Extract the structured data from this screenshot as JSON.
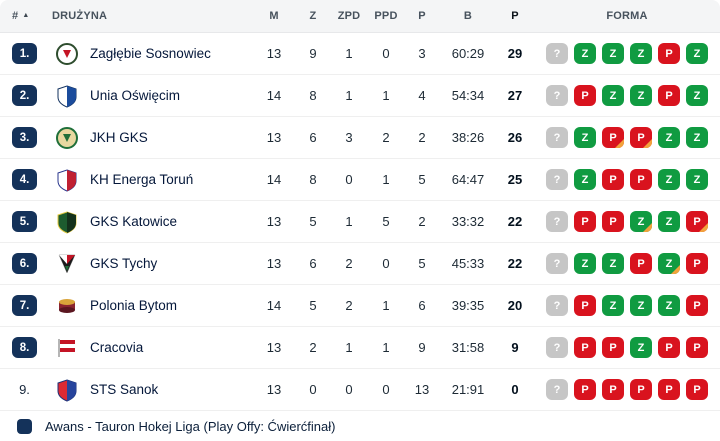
{
  "table": {
    "columns": {
      "rank": "#",
      "team": "DRUŻYNA",
      "m": "M",
      "z": "Z",
      "zpd": "ZPD",
      "ppd": "PPD",
      "p": "P",
      "b": "B",
      "pts": "P",
      "forma": "FORMA"
    },
    "sort": {
      "column": "rank",
      "direction": "asc",
      "icon": "sort-asc-triangle"
    },
    "rows": [
      {
        "rank": "1.",
        "rank_badge": true,
        "team": "Zagłębie Sosnowiec",
        "m": 13,
        "z": 9,
        "zpd": 1,
        "ppd": 0,
        "p": 3,
        "b": "60:29",
        "pts": 29,
        "logo": {
          "shape": "circle",
          "colors": [
            "#ffffff",
            "#2e4d2e",
            "#c41425"
          ]
        },
        "forma": [
          {
            "t": "?",
            "c": "unknown"
          },
          {
            "t": "Z",
            "c": "win"
          },
          {
            "t": "Z",
            "c": "win"
          },
          {
            "t": "Z",
            "c": "win"
          },
          {
            "t": "P",
            "c": "loss"
          },
          {
            "t": "Z",
            "c": "win"
          }
        ]
      },
      {
        "rank": "2.",
        "rank_badge": true,
        "team": "Unia Oświęcim",
        "m": 14,
        "z": 8,
        "zpd": 1,
        "ppd": 1,
        "p": 4,
        "b": "54:34",
        "pts": 27,
        "logo": {
          "shape": "shield",
          "colors": [
            "#ffffff",
            "#1b4c9c",
            "#12315e"
          ]
        },
        "forma": [
          {
            "t": "?",
            "c": "unknown"
          },
          {
            "t": "P",
            "c": "loss"
          },
          {
            "t": "Z",
            "c": "win"
          },
          {
            "t": "Z",
            "c": "win"
          },
          {
            "t": "P",
            "c": "loss"
          },
          {
            "t": "Z",
            "c": "win"
          }
        ]
      },
      {
        "rank": "3.",
        "rank_badge": true,
        "team": "JKH GKS",
        "m": 13,
        "z": 6,
        "zpd": 3,
        "ppd": 2,
        "p": 2,
        "b": "38:26",
        "pts": 26,
        "logo": {
          "shape": "circle",
          "colors": [
            "#e8d8a0",
            "#1f6f39",
            "#1f6f39"
          ]
        },
        "forma": [
          {
            "t": "?",
            "c": "unknown"
          },
          {
            "t": "Z",
            "c": "win"
          },
          {
            "t": "P",
            "c": "loss",
            "ot": true
          },
          {
            "t": "P",
            "c": "loss",
            "ot": true
          },
          {
            "t": "Z",
            "c": "win"
          },
          {
            "t": "Z",
            "c": "win"
          }
        ]
      },
      {
        "rank": "4.",
        "rank_badge": true,
        "team": "KH Energa Toruń",
        "m": 14,
        "z": 8,
        "zpd": 0,
        "ppd": 1,
        "p": 5,
        "b": "64:47",
        "pts": 25,
        "logo": {
          "shape": "shield",
          "colors": [
            "#ffffff",
            "#c02032",
            "#28358c"
          ]
        },
        "forma": [
          {
            "t": "?",
            "c": "unknown"
          },
          {
            "t": "Z",
            "c": "win"
          },
          {
            "t": "P",
            "c": "loss"
          },
          {
            "t": "P",
            "c": "loss"
          },
          {
            "t": "Z",
            "c": "win"
          },
          {
            "t": "Z",
            "c": "win"
          }
        ]
      },
      {
        "rank": "5.",
        "rank_badge": true,
        "team": "GKS Katowice",
        "m": 13,
        "z": 5,
        "zpd": 1,
        "ppd": 5,
        "p": 2,
        "b": "33:32",
        "pts": 22,
        "logo": {
          "shape": "shield",
          "colors": [
            "#1d5c2f",
            "#14321c",
            "#e3c93f"
          ]
        },
        "forma": [
          {
            "t": "?",
            "c": "unknown"
          },
          {
            "t": "P",
            "c": "loss"
          },
          {
            "t": "P",
            "c": "loss"
          },
          {
            "t": "Z",
            "c": "win",
            "ot": true
          },
          {
            "t": "Z",
            "c": "win"
          },
          {
            "t": "P",
            "c": "loss",
            "ot": true
          }
        ]
      },
      {
        "rank": "6.",
        "rank_badge": true,
        "team": "GKS Tychy",
        "m": 13,
        "z": 6,
        "zpd": 2,
        "ppd": 0,
        "p": 5,
        "b": "45:33",
        "pts": 22,
        "logo": {
          "shape": "pennant",
          "colors": [
            "#1a1a1a",
            "#1f6f39",
            "#c41425"
          ]
        },
        "forma": [
          {
            "t": "?",
            "c": "unknown"
          },
          {
            "t": "Z",
            "c": "win"
          },
          {
            "t": "Z",
            "c": "win"
          },
          {
            "t": "P",
            "c": "loss"
          },
          {
            "t": "Z",
            "c": "win",
            "ot": true
          },
          {
            "t": "P",
            "c": "loss"
          }
        ]
      },
      {
        "rank": "7.",
        "rank_badge": true,
        "team": "Polonia Bytom",
        "m": 14,
        "z": 5,
        "zpd": 2,
        "ppd": 1,
        "p": 6,
        "b": "39:35",
        "pts": 20,
        "logo": {
          "shape": "puck",
          "colors": [
            "#8a2430",
            "#d9a43a",
            "#5b1620"
          ]
        },
        "forma": [
          {
            "t": "?",
            "c": "unknown"
          },
          {
            "t": "P",
            "c": "loss"
          },
          {
            "t": "Z",
            "c": "win"
          },
          {
            "t": "Z",
            "c": "win"
          },
          {
            "t": "Z",
            "c": "win"
          },
          {
            "t": "P",
            "c": "loss"
          }
        ]
      },
      {
        "rank": "8.",
        "rank_badge": true,
        "team": "Cracovia",
        "m": 13,
        "z": 2,
        "zpd": 1,
        "ppd": 1,
        "p": 9,
        "b": "31:58",
        "pts": 9,
        "logo": {
          "shape": "flag",
          "colors": [
            "#ffffff",
            "#c41425",
            "#b5b5b5"
          ]
        },
        "forma": [
          {
            "t": "?",
            "c": "unknown"
          },
          {
            "t": "P",
            "c": "loss"
          },
          {
            "t": "P",
            "c": "loss"
          },
          {
            "t": "Z",
            "c": "win"
          },
          {
            "t": "P",
            "c": "loss"
          },
          {
            "t": "P",
            "c": "loss"
          }
        ]
      },
      {
        "rank": "9.",
        "rank_badge": false,
        "team": "STS Sanok",
        "m": 13,
        "z": 0,
        "zpd": 0,
        "ppd": 0,
        "p": 13,
        "b": "21:91",
        "pts": 0,
        "logo": {
          "shape": "shield",
          "colors": [
            "#dd2a33",
            "#27449c",
            "#1c3277"
          ]
        },
        "forma": [
          {
            "t": "?",
            "c": "unknown"
          },
          {
            "t": "P",
            "c": "loss"
          },
          {
            "t": "P",
            "c": "loss"
          },
          {
            "t": "P",
            "c": "loss"
          },
          {
            "t": "P",
            "c": "loss"
          },
          {
            "t": "P",
            "c": "loss"
          }
        ]
      }
    ]
  },
  "footer": {
    "legend_color": "#14325a",
    "text": "Awans - Tauron Hokej Liga (Play Offy: Ćwierćfinał)"
  },
  "colors": {
    "win": "#109b41",
    "loss": "#d9131e",
    "unknown": "#c6c6c6",
    "overtime": "#f2a33c",
    "rank_navy": "#14325a"
  }
}
